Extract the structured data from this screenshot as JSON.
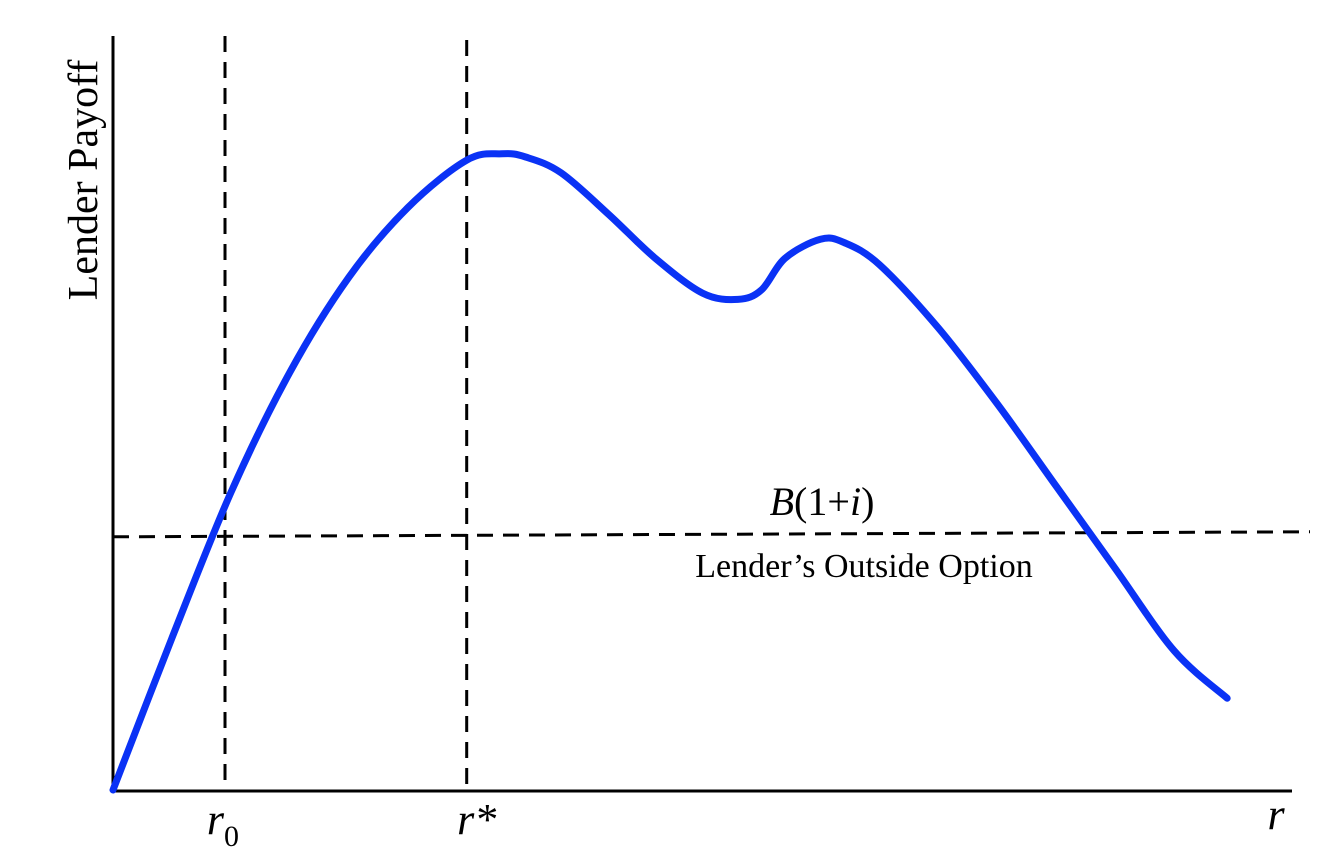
{
  "chart_data": {
    "type": "line",
    "title": "",
    "ylabel": "Lender Payoff",
    "xlabel": "r",
    "xlim": [
      0,
      100
    ],
    "ylim": [
      0,
      100
    ],
    "grid": false,
    "series": [
      {
        "color": "#0a32f5",
        "x": [
          0,
          5,
          10,
          15,
          20,
          25,
          30,
          33,
          35,
          38,
          42,
          46,
          50,
          53,
          55,
          57,
          60,
          62,
          65,
          70,
          75,
          80,
          85,
          90,
          94.5
        ],
        "y": [
          0,
          24,
          47,
          66,
          81,
          92,
          99.5,
          100.5,
          100,
          97.5,
          91,
          84,
          78.5,
          77.5,
          79,
          84,
          87,
          86.5,
          83,
          73,
          61,
          48,
          35,
          22,
          14.5
        ]
      }
    ],
    "reference_lines": {
      "vertical": [
        {
          "x": 9.5,
          "label_base": "r",
          "label_sub": "0"
        },
        {
          "x": 30,
          "label_base": "r",
          "label_sup": "*"
        }
      ],
      "horizontal": {
        "y": 40,
        "label_main": "B(1+i)",
        "label_sub": "Lender’s Outside Option"
      }
    },
    "colors": {
      "curve": "#0a32f5",
      "axes": "#000000",
      "dashed": "#000000"
    }
  }
}
